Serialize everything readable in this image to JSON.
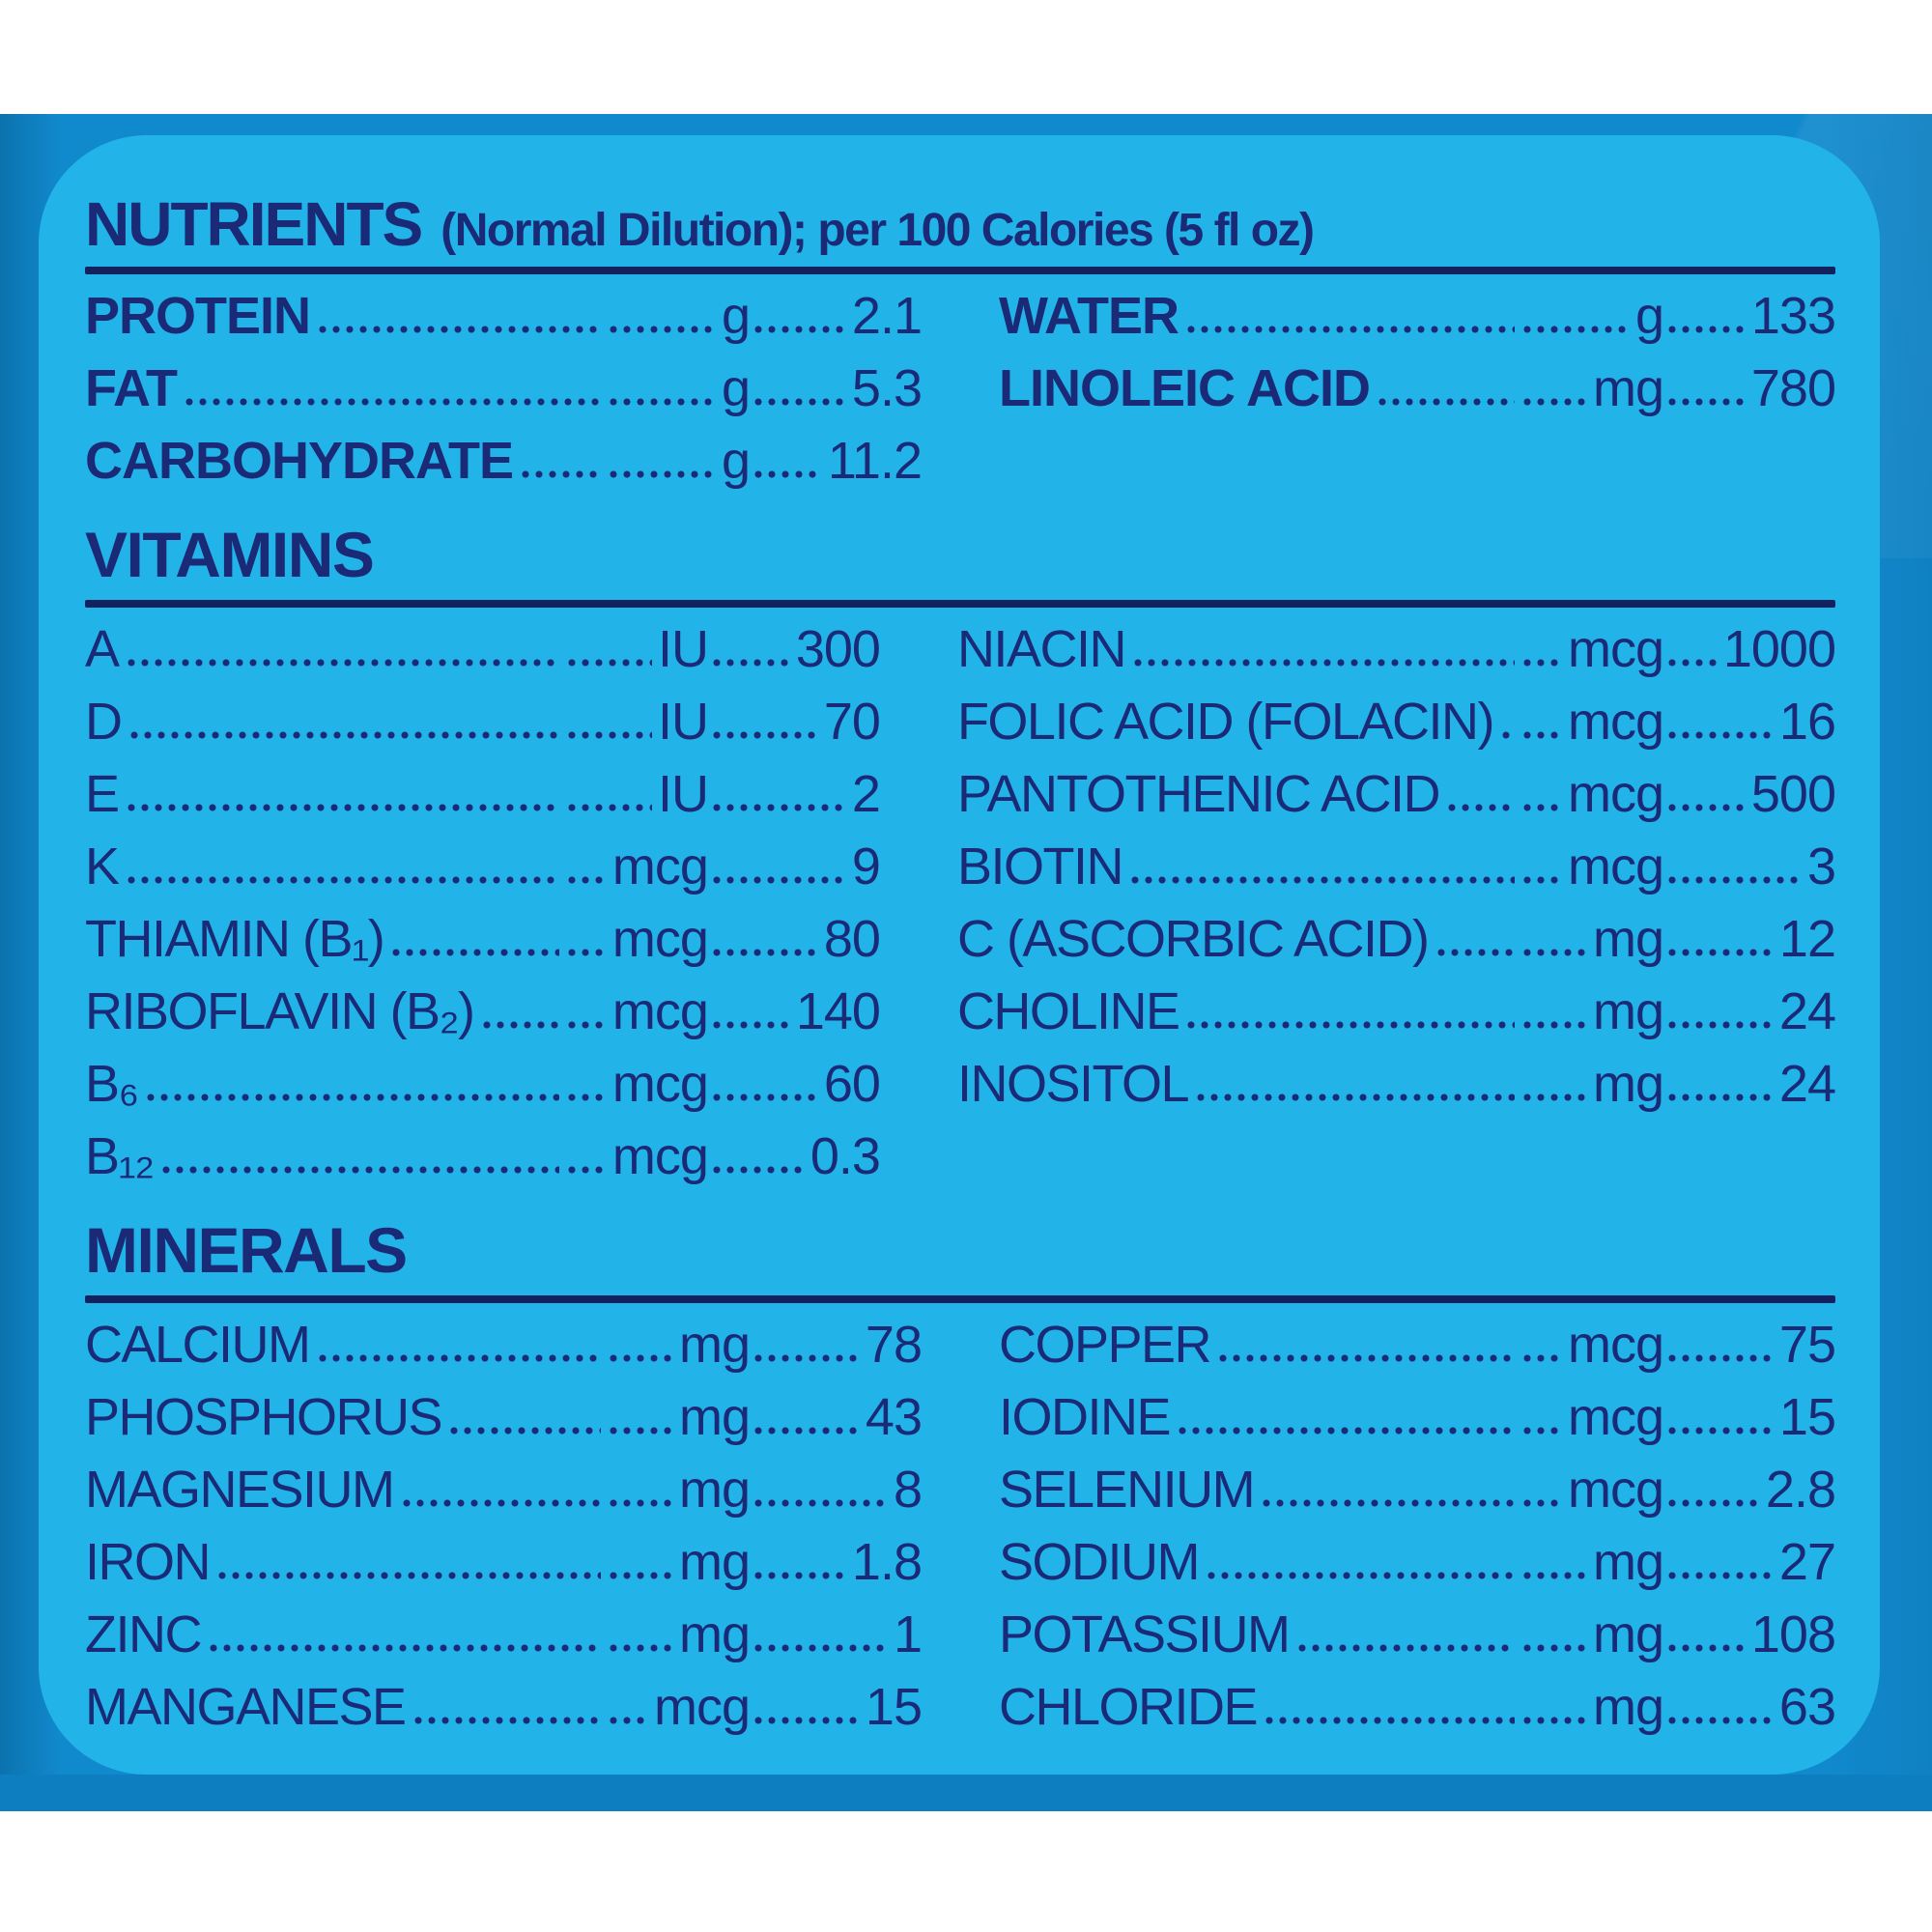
{
  "header": {
    "title": "NUTRIENTS",
    "subtitle": "(Normal Dilution); per 100 Calories (5 fl oz)"
  },
  "sections": [
    {
      "title": "",
      "left": [
        {
          "label": "PROTEIN",
          "unit": "g",
          "value": "2.1"
        },
        {
          "label": "FAT",
          "unit": "g",
          "value": "5.3"
        },
        {
          "label": "CARBOHYDRATE",
          "unit": "g",
          "value": "11.2"
        }
      ],
      "right": [
        {
          "label": "WATER",
          "unit": "g",
          "value": "133"
        },
        {
          "label": "LINOLEIC ACID",
          "unit": "mg",
          "value": "780"
        }
      ]
    },
    {
      "title": "VITAMINS",
      "left": [
        {
          "label": "A",
          "unit": "IU",
          "value": "300"
        },
        {
          "label": "D",
          "unit": "IU",
          "value": "70"
        },
        {
          "label": "E",
          "unit": "IU",
          "value": "2"
        },
        {
          "label": "K",
          "unit": "mcg",
          "value": "9"
        },
        {
          "label": "THIAMIN (B₁)",
          "unit": "mcg",
          "value": "80"
        },
        {
          "label": "RIBOFLAVIN (B₂)",
          "unit": "mcg",
          "value": "140"
        },
        {
          "label": "B₆",
          "unit": "mcg",
          "value": "60"
        },
        {
          "label": "B₁₂",
          "unit": "mcg",
          "value": "0.3"
        }
      ],
      "right": [
        {
          "label": "NIACIN",
          "unit": "mcg",
          "value": "1000"
        },
        {
          "label": "FOLIC ACID (FOLACIN)",
          "unit": "mcg",
          "value": "16"
        },
        {
          "label": "PANTOTHENIC ACID",
          "unit": "mcg",
          "value": "500"
        },
        {
          "label": "BIOTIN",
          "unit": "mcg",
          "value": "3"
        },
        {
          "label": "C (ASCORBIC ACID)",
          "unit": "mg",
          "value": "12"
        },
        {
          "label": "CHOLINE",
          "unit": "mg",
          "value": "24"
        },
        {
          "label": "INOSITOL",
          "unit": "mg",
          "value": "24"
        }
      ]
    },
    {
      "title": "MINERALS",
      "left": [
        {
          "label": "CALCIUM",
          "unit": "mg",
          "value": "78"
        },
        {
          "label": "PHOSPHORUS",
          "unit": "mg",
          "value": "43"
        },
        {
          "label": "MAGNESIUM",
          "unit": "mg",
          "value": "8"
        },
        {
          "label": "IRON",
          "unit": "mg",
          "value": "1.8"
        },
        {
          "label": "ZINC",
          "unit": "mg",
          "value": "1"
        },
        {
          "label": "MANGANESE",
          "unit": "mcg",
          "value": "15"
        }
      ],
      "right": [
        {
          "label": "COPPER",
          "unit": "mcg",
          "value": "75"
        },
        {
          "label": "IODINE",
          "unit": "mcg",
          "value": "15"
        },
        {
          "label": "SELENIUM",
          "unit": "mcg",
          "value": "2.8"
        },
        {
          "label": "SODIUM",
          "unit": "mg",
          "value": "27"
        },
        {
          "label": "POTASSIUM",
          "unit": "mg",
          "value": "108"
        },
        {
          "label": "CHLORIDE",
          "unit": "mg",
          "value": "63"
        }
      ]
    }
  ],
  "colors": {
    "text_navy": "#1a2a76",
    "panel_cyan": "#22b4e9",
    "background_blue": "#1189cd",
    "background_dark_band": "#0d7fc0",
    "band_white": "#ffffff"
  }
}
